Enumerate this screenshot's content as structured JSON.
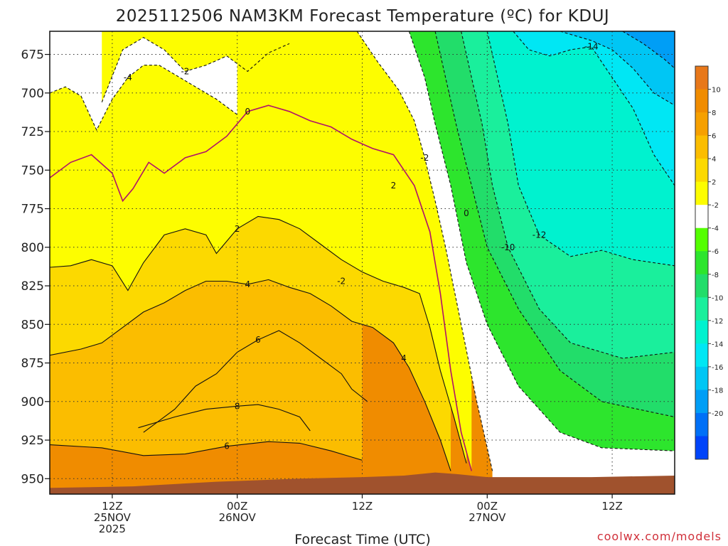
{
  "chart_data": {
    "type": "heatmap",
    "subtype": "time-height filled contour",
    "title": "2025112506 NAM3KM Forecast Temperature (ºC) for KDUJ",
    "xlabel": "Forecast Time (UTC)",
    "ylabel": "",
    "x_unit": "forecast hour from 2025-11-25 06Z",
    "xlim": [
      0,
      60
    ],
    "y_unit": "hPa",
    "ylim": [
      960,
      660
    ],
    "y_ticks": [
      "675",
      "700",
      "725",
      "750",
      "775",
      "800",
      "825",
      "850",
      "875",
      "900",
      "925",
      "950"
    ],
    "x_ticks": [
      {
        "hour": 6,
        "line1": "12Z",
        "line2": "25NOV",
        "line3": "2025"
      },
      {
        "hour": 18,
        "line1": "00Z",
        "line2": "26NOV",
        "line3": ""
      },
      {
        "hour": 30,
        "line1": "12Z",
        "line2": "",
        "line3": ""
      },
      {
        "hour": 42,
        "line1": "00Z",
        "line2": "27NOV",
        "line3": ""
      },
      {
        "hour": 54,
        "line1": "12Z",
        "line2": "",
        "line3": ""
      }
    ],
    "grid": "dotted",
    "terrain_color": "#a0522d",
    "surface_pressure_hPa": [
      [
        0,
        956
      ],
      [
        8,
        955
      ],
      [
        16,
        952
      ],
      [
        24,
        950
      ],
      [
        30,
        949
      ],
      [
        34,
        948
      ],
      [
        37,
        946
      ],
      [
        39,
        947
      ],
      [
        42,
        949
      ],
      [
        52,
        949
      ],
      [
        60,
        948
      ]
    ],
    "colorbar": {
      "position": "right",
      "ticks": [
        "10",
        "8",
        "6",
        "4",
        "2",
        "-2",
        "-4",
        "-6",
        "-8",
        "-10",
        "-12",
        "-14",
        "-16",
        "-18",
        "-20"
      ],
      "levels": [
        12,
        10,
        8,
        6,
        4,
        2,
        -2,
        -4,
        -6,
        -8,
        -10,
        -12,
        -14,
        -16,
        -18,
        -20,
        -22
      ],
      "colors": [
        "#e8781a",
        "#f08c00",
        "#f6a000",
        "#fbbd00",
        "#fcd900",
        "#fdfd00",
        "#ffffff",
        "#54ff00",
        "#2de52d",
        "#22dd6a",
        "#1aef9c",
        "#00f2cf",
        "#00e7f4",
        "#00c6f4",
        "#009ef6",
        "#0070f7",
        "#0044fa"
      ]
    },
    "isotherms": [
      {
        "temp": 8,
        "label": "8",
        "points": [
          [
            8.5,
            917
          ],
          [
            12,
            910
          ],
          [
            15,
            905
          ],
          [
            18,
            903
          ],
          [
            20,
            902
          ],
          [
            22,
            905
          ],
          [
            24,
            910
          ],
          [
            25,
            919
          ]
        ]
      },
      {
        "temp": 6,
        "label": "6",
        "points": [
          [
            0,
            928
          ],
          [
            5,
            930
          ],
          [
            9,
            935
          ],
          [
            13,
            934
          ],
          [
            17,
            929
          ],
          [
            21,
            926
          ],
          [
            24,
            927
          ],
          [
            27,
            932
          ],
          [
            30,
            938
          ]
        ]
      },
      {
        "temp": 6,
        "label": "6",
        "points": [
          [
            9,
            920
          ],
          [
            12,
            905
          ],
          [
            14,
            890
          ],
          [
            16,
            882
          ],
          [
            18,
            868
          ],
          [
            20,
            860
          ],
          [
            22,
            854
          ],
          [
            24,
            862
          ],
          [
            26,
            872
          ],
          [
            28,
            882
          ],
          [
            29,
            892
          ],
          [
            30.5,
            900
          ]
        ]
      },
      {
        "temp": 4,
        "label": "4",
        "points": [
          [
            0,
            870
          ],
          [
            3,
            866
          ],
          [
            5,
            862
          ],
          [
            7,
            852
          ],
          [
            9,
            842
          ],
          [
            11,
            836
          ],
          [
            13,
            828
          ],
          [
            15,
            822
          ],
          [
            17,
            822
          ],
          [
            19,
            824
          ],
          [
            21,
            821
          ],
          [
            23,
            826
          ],
          [
            25,
            830
          ],
          [
            27,
            838
          ],
          [
            29,
            848
          ],
          [
            31,
            852
          ],
          [
            33,
            862
          ],
          [
            34.5,
            878
          ],
          [
            36,
            900
          ],
          [
            37.5,
            925
          ],
          [
            38.5,
            945
          ]
        ]
      },
      {
        "temp": 2,
        "label": "2",
        "points": [
          [
            0,
            813
          ],
          [
            2,
            812
          ],
          [
            4,
            808
          ],
          [
            6,
            812
          ],
          [
            7.5,
            828
          ],
          [
            9,
            810
          ],
          [
            11,
            792
          ],
          [
            13,
            788
          ],
          [
            15,
            792
          ],
          [
            16,
            804
          ],
          [
            18,
            788
          ],
          [
            20,
            780
          ],
          [
            22,
            782
          ],
          [
            24,
            788
          ],
          [
            26,
            798
          ],
          [
            28,
            808
          ],
          [
            30,
            816
          ],
          [
            32,
            822
          ],
          [
            34,
            826
          ],
          [
            35.5,
            830
          ],
          [
            36.5,
            852
          ],
          [
            37.5,
            880
          ],
          [
            38.8,
            910
          ],
          [
            40,
            940
          ]
        ]
      },
      {
        "temp": 0,
        "label": "0",
        "points": [
          [
            0,
            755
          ],
          [
            2,
            745
          ],
          [
            4,
            740
          ],
          [
            6,
            752
          ],
          [
            7,
            770
          ],
          [
            8,
            762
          ],
          [
            9.5,
            745
          ],
          [
            11,
            752
          ],
          [
            13,
            742
          ],
          [
            15,
            738
          ],
          [
            17,
            728
          ],
          [
            19,
            712
          ],
          [
            21,
            708
          ],
          [
            23,
            712
          ],
          [
            25,
            718
          ],
          [
            27,
            722
          ],
          [
            29,
            730
          ],
          [
            31,
            736
          ],
          [
            33,
            740
          ],
          [
            35,
            760
          ],
          [
            36.5,
            790
          ],
          [
            37.5,
            830
          ],
          [
            38.5,
            880
          ],
          [
            39.5,
            920
          ],
          [
            40.5,
            945
          ]
        ]
      },
      {
        "temp": -2,
        "label": "-2",
        "points": [
          [
            5,
            706
          ],
          [
            7,
            672
          ],
          [
            9,
            664
          ],
          [
            11,
            672
          ],
          [
            13,
            686
          ],
          [
            15,
            682
          ],
          [
            17,
            676
          ],
          [
            19,
            686
          ],
          [
            21,
            674
          ],
          [
            23,
            668
          ]
        ]
      },
      {
        "temp": -2,
        "label": "-2",
        "points": [
          [
            29.5,
            660
          ],
          [
            31.5,
            680
          ],
          [
            33.5,
            698
          ],
          [
            35,
            718
          ],
          [
            36,
            742
          ],
          [
            37,
            770
          ],
          [
            38,
            800
          ],
          [
            39.5,
            850
          ],
          [
            41,
            900
          ],
          [
            42.5,
            945
          ]
        ]
      },
      {
        "temp": -4,
        "label": "-4",
        "points": [
          [
            0,
            700
          ],
          [
            1.5,
            696
          ],
          [
            3,
            702
          ],
          [
            4.5,
            724
          ],
          [
            6,
            704
          ],
          [
            7.5,
            690
          ],
          [
            9,
            682
          ],
          [
            10.5,
            682
          ],
          [
            12.5,
            690
          ],
          [
            14.5,
            698
          ],
          [
            16,
            704
          ],
          [
            18,
            714
          ]
        ]
      },
      {
        "temp": -6,
        "label": "",
        "points": [
          [
            34.5,
            660
          ],
          [
            36,
            690
          ],
          [
            37,
            720
          ],
          [
            38.5,
            760
          ],
          [
            40,
            810
          ],
          [
            42,
            850
          ],
          [
            45,
            890
          ],
          [
            49,
            920
          ],
          [
            53,
            930
          ],
          [
            60,
            932
          ]
        ]
      },
      {
        "temp": -8,
        "label": "",
        "points": [
          [
            37,
            660
          ],
          [
            38,
            690
          ],
          [
            39,
            720
          ],
          [
            40.5,
            760
          ],
          [
            42,
            800
          ],
          [
            45,
            840
          ],
          [
            49,
            880
          ],
          [
            53,
            900
          ],
          [
            60,
            910
          ]
        ]
      },
      {
        "temp": -10,
        "label": "-10",
        "points": [
          [
            39.5,
            660
          ],
          [
            40.5,
            690
          ],
          [
            41.5,
            720
          ],
          [
            42.5,
            760
          ],
          [
            44,
            800
          ],
          [
            47,
            840
          ],
          [
            50,
            862
          ],
          [
            55,
            872
          ],
          [
            60,
            868
          ]
        ]
      },
      {
        "temp": -12,
        "label": "-12",
        "points": [
          [
            42,
            660
          ],
          [
            43,
            690
          ],
          [
            44,
            720
          ],
          [
            45,
            760
          ],
          [
            47,
            792
          ],
          [
            50,
            806
          ],
          [
            53,
            802
          ],
          [
            56,
            808
          ],
          [
            60,
            812
          ]
        ]
      },
      {
        "temp": -14,
        "label": "-14",
        "points": [
          [
            44.5,
            660
          ],
          [
            46,
            672
          ],
          [
            48,
            676
          ],
          [
            50,
            672
          ],
          [
            52,
            670
          ],
          [
            54,
            690
          ],
          [
            56,
            710
          ],
          [
            58,
            740
          ],
          [
            60,
            760
          ]
        ]
      },
      {
        "temp": -16,
        "label": "",
        "points": [
          [
            49,
            660
          ],
          [
            52,
            666
          ],
          [
            54,
            672
          ],
          [
            56,
            684
          ],
          [
            58,
            700
          ],
          [
            60,
            708
          ]
        ]
      },
      {
        "temp": -18,
        "label": "",
        "points": [
          [
            55,
            660
          ],
          [
            57,
            668
          ],
          [
            59,
            678
          ],
          [
            60,
            684
          ]
        ]
      }
    ],
    "annotations": [
      "0",
      "2",
      "-2",
      "4"
    ]
  },
  "credit": "coolwx.com/models"
}
